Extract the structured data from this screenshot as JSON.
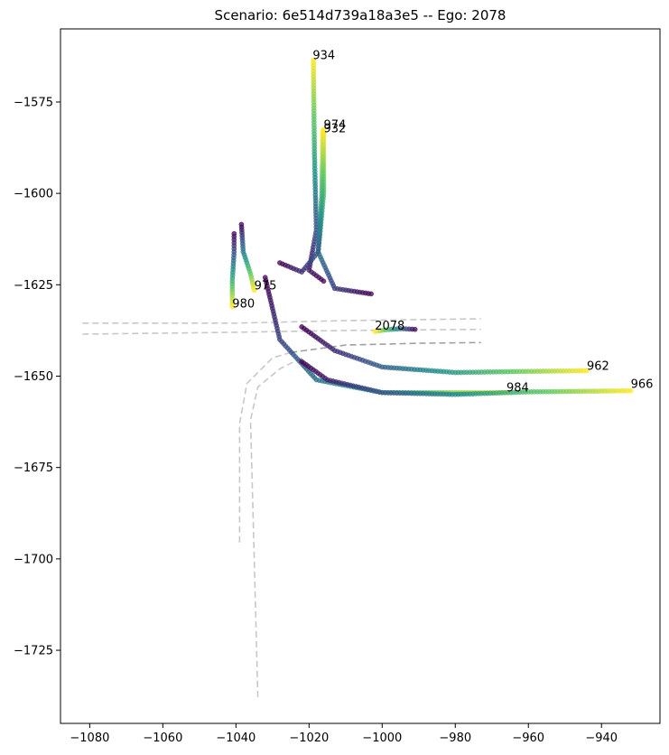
{
  "chart_data": {
    "type": "scatter",
    "title": "Scenario: 6e514d739a18a3e5 -- Ego: 2078",
    "xlabel": "",
    "ylabel": "",
    "xlim": [
      -1088,
      -924
    ],
    "ylim": [
      -1745,
      -1555
    ],
    "xticks": [
      -1080,
      -1060,
      -1040,
      -1020,
      -1000,
      -980,
      -960,
      -940
    ],
    "xtick_labels": [
      "−1080",
      "−1060",
      "−1040",
      "−1020",
      "−1000",
      "−980",
      "−960",
      "−940"
    ],
    "yticks": [
      -1575,
      -1600,
      -1625,
      -1650,
      -1675,
      -1700,
      -1725
    ],
    "ytick_labels": [
      "−1575",
      "−1600",
      "−1625",
      "−1650",
      "−1675",
      "−1700",
      "−1725"
    ],
    "grid": false,
    "colormap": "viridis",
    "colormap_stops": [
      "#440154",
      "#3b528b",
      "#21918c",
      "#5ec962",
      "#fde725"
    ],
    "lane_color_light": "#c8c8c8",
    "lane_color_dark": "#a0a0a0",
    "lanes": [
      {
        "shade": "light",
        "points": [
          [
            -1082,
            -1635.5
          ],
          [
            -1040,
            -1635.5
          ],
          [
            -1010,
            -1634.8
          ],
          [
            -973,
            -1634.3
          ]
        ]
      },
      {
        "shade": "light",
        "points": [
          [
            -1082,
            -1638.5
          ],
          [
            -1040,
            -1638.0
          ],
          [
            -1010,
            -1637.5
          ],
          [
            -973,
            -1637.2
          ]
        ]
      },
      {
        "shade": "dark",
        "points": [
          [
            -1025,
            -1643.5
          ],
          [
            -1010,
            -1641.5
          ],
          [
            -990,
            -1641.0
          ],
          [
            -973,
            -1640.8
          ]
        ]
      },
      {
        "shade": "light",
        "points": [
          [
            -1025,
            -1643.5
          ],
          [
            -1030,
            -1645
          ],
          [
            -1037,
            -1652
          ],
          [
            -1039,
            -1663
          ],
          [
            -1039,
            -1696
          ]
        ]
      },
      {
        "shade": "light",
        "points": [
          [
            -1022,
            -1645.0
          ],
          [
            -1028,
            -1648
          ],
          [
            -1034,
            -1653
          ],
          [
            -1036,
            -1662
          ],
          [
            -1035,
            -1700
          ],
          [
            -1034,
            -1738
          ]
        ]
      }
    ],
    "series": [
      {
        "name": "934",
        "points": [
          [
            -1016,
            -1624
          ],
          [
            -1020,
            -1621
          ],
          [
            -1018,
            -1610
          ],
          [
            -1018.5,
            -1590
          ],
          [
            -1018.7,
            -1575
          ],
          [
            -1018.8,
            -1563.5
          ]
        ]
      },
      {
        "name": "974",
        "points": [
          [
            -1003,
            -1627.5
          ],
          [
            -1013,
            -1626
          ],
          [
            -1017.5,
            -1616
          ],
          [
            -1016,
            -1600
          ],
          [
            -1016,
            -1590
          ],
          [
            -1016,
            -1582.5
          ]
        ]
      },
      {
        "name": "932",
        "points": [
          [
            -1028,
            -1619
          ],
          [
            -1022,
            -1621.5
          ],
          [
            -1017.5,
            -1616
          ],
          [
            -1016.5,
            -1600
          ],
          [
            -1016.3,
            -1590
          ],
          [
            -1016.3,
            -1583
          ]
        ]
      },
      {
        "name": "975",
        "points": [
          [
            -1038.5,
            -1608.5
          ],
          [
            -1038,
            -1616
          ],
          [
            -1036,
            -1622
          ],
          [
            -1035.0,
            -1626.5
          ]
        ]
      },
      {
        "name": "980",
        "points": [
          [
            -1040.5,
            -1611
          ],
          [
            -1040.5,
            -1616
          ],
          [
            -1041,
            -1624
          ],
          [
            -1041.0,
            -1631
          ]
        ]
      },
      {
        "name": "2078",
        "points": [
          [
            -991,
            -1637.2
          ],
          [
            -995,
            -1637.0
          ],
          [
            -999,
            -1637.3
          ],
          [
            -1002.0,
            -1637.8
          ]
        ]
      },
      {
        "name": "962",
        "points": [
          [
            -1022,
            -1636.5
          ],
          [
            -1013,
            -1643
          ],
          [
            -1000,
            -1647.5
          ],
          [
            -980,
            -1649
          ],
          [
            -960,
            -1648.7
          ],
          [
            -944,
            -1648.5
          ]
        ]
      },
      {
        "name": "984",
        "points": [
          [
            -1032,
            -1623
          ],
          [
            -1028,
            -1640
          ],
          [
            -1018,
            -1651
          ],
          [
            -1000,
            -1654.5
          ],
          [
            -980,
            -1654.5
          ],
          [
            -966,
            -1654.5
          ]
        ]
      },
      {
        "name": "966",
        "points": [
          [
            -1022,
            -1646
          ],
          [
            -1015,
            -1651
          ],
          [
            -1000,
            -1654.5
          ],
          [
            -980,
            -1655
          ],
          [
            -960,
            -1654.3
          ],
          [
            -932,
            -1654
          ]
        ]
      }
    ],
    "labels": [
      {
        "text": "934",
        "x": -1019,
        "y": -1563
      },
      {
        "text": "974",
        "x": -1016,
        "y": -1582
      },
      {
        "text": "932",
        "x": -1016,
        "y": -1583
      },
      {
        "text": "975",
        "x": -1035,
        "y": -1626
      },
      {
        "text": "980",
        "x": -1041,
        "y": -1631
      },
      {
        "text": "2078",
        "x": -1002,
        "y": -1637
      },
      {
        "text": "962",
        "x": -944,
        "y": -1648
      },
      {
        "text": "984",
        "x": -966,
        "y": -1654
      },
      {
        "text": "966",
        "x": -932,
        "y": -1653
      }
    ]
  }
}
